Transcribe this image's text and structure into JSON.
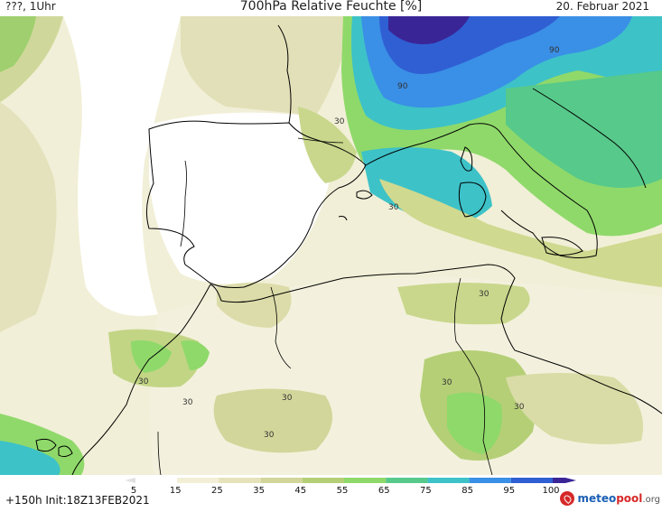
{
  "header": {
    "left": "???, 1Uhr",
    "title": "700hPa Relative Feuchte [%]",
    "date": "20. Februar 2021"
  },
  "map": {
    "contour_labels": [
      "90",
      "90",
      "30",
      "30",
      "30",
      "30",
      "30",
      "30",
      "30",
      "30",
      "30"
    ]
  },
  "colorbar": {
    "ticks": [
      "5",
      "15",
      "25",
      "35",
      "45",
      "55",
      "65",
      "75",
      "85",
      "95",
      "100"
    ],
    "colors": [
      "#ffffff",
      "#f2efd6",
      "#e6e3bb",
      "#d2d69a",
      "#b5cf76",
      "#8fd96a",
      "#57c98a",
      "#3dc2c8",
      "#3a8fe6",
      "#2f5fd3",
      "#3a2596"
    ]
  },
  "footer": {
    "init": "+150h  Init:18Z13FEB2021",
    "logo_main": "meteo",
    "logo_accent": "pool",
    "logo_suffix": ".org"
  }
}
